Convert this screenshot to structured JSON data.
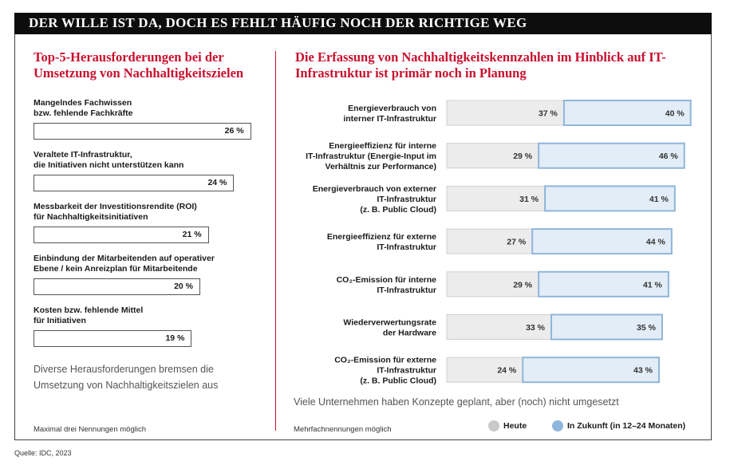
{
  "banner": "DER WILLE IST DA, DOCH ES FEHLT HÄUFIG NOCH DER RICHTIGE WEG",
  "left": {
    "title": "Top-5-Herausforderungen bei der Umsetzung von Nachhaltigkeitszielen",
    "note": "Diverse Herausforderungen bremsen die Umsetzung von Nachhaltigkeitszielen aus",
    "footnote": "Maximal drei Nennungen möglich"
  },
  "right": {
    "title": "Die Erfassung von Nachhaltigkeitskennzahlen im Hinblick auf IT-Infrastruktur ist primär noch in Planung",
    "note": "Viele Unternehmen haben Konzepte geplant, aber (noch) nicht umgesetzt",
    "footnote": "Mehrfachnennungen möglich"
  },
  "legend": {
    "heute": "Heute",
    "zukunft": "In Zukunft (in 12–24 Monaten)"
  },
  "source": "Quelle: IDC, 2023",
  "colors": {
    "accent": "#c8102e",
    "heute": "#ececec",
    "zukunft": "#e3edf7",
    "zukunft_border": "#8fb6da",
    "heute_dot": "#c9c9c9",
    "zukunft_dot": "#8fb6da"
  },
  "chart_data": [
    {
      "type": "bar",
      "categories": [
        "Mangelndes Fachwissen bzw. fehlende Fachkräfte",
        "Veraltete IT-Infrastruktur, die Initiativen nicht unterstützen kann",
        "Messbarkeit der Investitionsrendite (ROI) für Nachhaltigkeitsinitiativen",
        "Einbindung der Mitarbeitenden auf operativer Ebene / kein Anreizplan für Mitarbeitende",
        "Kosten bzw. fehlende Mittel für Initiativen"
      ],
      "label_lines": [
        [
          "Mangelndes Fachwissen",
          "bzw. fehlende Fachkräfte"
        ],
        [
          "Veraltete IT-Infrastruktur,",
          "die Initiativen nicht unterstützen kann"
        ],
        [
          "Messbarkeit der Investitionsrendite (ROI)",
          "für Nachhaltigkeitsinitiativen"
        ],
        [
          "Einbindung der Mitarbeitenden auf operativer",
          "Ebene / kein Anreizplan für Mitarbeitende"
        ],
        [
          "Kosten bzw. fehlende Mittel",
          "für Initiativen"
        ]
      ],
      "values": [
        26,
        24,
        21,
        20,
        19
      ],
      "value_labels": [
        "26 %",
        "24 %",
        "21 %",
        "20 %",
        "19 %"
      ]
    },
    {
      "type": "bar",
      "stacked": true,
      "categories": [
        "Energieverbrauch von interner IT-Infrastruktur",
        "Energieeffizienz für interne IT-Infrastruktur (Energie-Input im Verhältnis zur Performance)",
        "Energieverbrauch von externer IT-Infrastruktur (z. B. Public Cloud)",
        "Energieeffizienz für externe IT-Infrastruktur",
        "CO2-Emission für interne IT-Infrastruktur",
        "Wiederverwertungsrate der Hardware",
        "CO2-Emission für externe IT-Infrastruktur (z. B. Public Cloud)"
      ],
      "label_lines": [
        [
          "Energieverbrauch von",
          "interner IT-Infrastruktur"
        ],
        [
          "Energieeffizienz für interne",
          "IT-Infrastruktur (Energie-Input im",
          "Verhältnis zur Performance)"
        ],
        [
          "Energieverbrauch von externer",
          "IT-Infrastruktur",
          "(z. B. Public Cloud)"
        ],
        [
          "Energieeffizienz für externe",
          "IT-Infrastruktur"
        ],
        [
          "CO₂-Emission für interne",
          "IT-Infrastruktur"
        ],
        [
          "Wiederverwertungsrate",
          "der Hardware"
        ],
        [
          "CO₂-Emission für externe",
          "IT-Infrastruktur",
          "(z. B. Public Cloud)"
        ]
      ],
      "series": [
        {
          "name": "Heute",
          "values": [
            37,
            29,
            31,
            27,
            29,
            33,
            24
          ],
          "value_labels": [
            "37 %",
            "29 %",
            "31 %",
            "27 %",
            "29 %",
            "33 %",
            "24 %"
          ]
        },
        {
          "name": "In Zukunft (in 12–24 Monaten)",
          "values": [
            40,
            46,
            41,
            44,
            41,
            35,
            43
          ],
          "value_labels": [
            "40 %",
            "46 %",
            "41 %",
            "44 %",
            "41 %",
            "35 %",
            "43 %"
          ]
        }
      ]
    }
  ]
}
